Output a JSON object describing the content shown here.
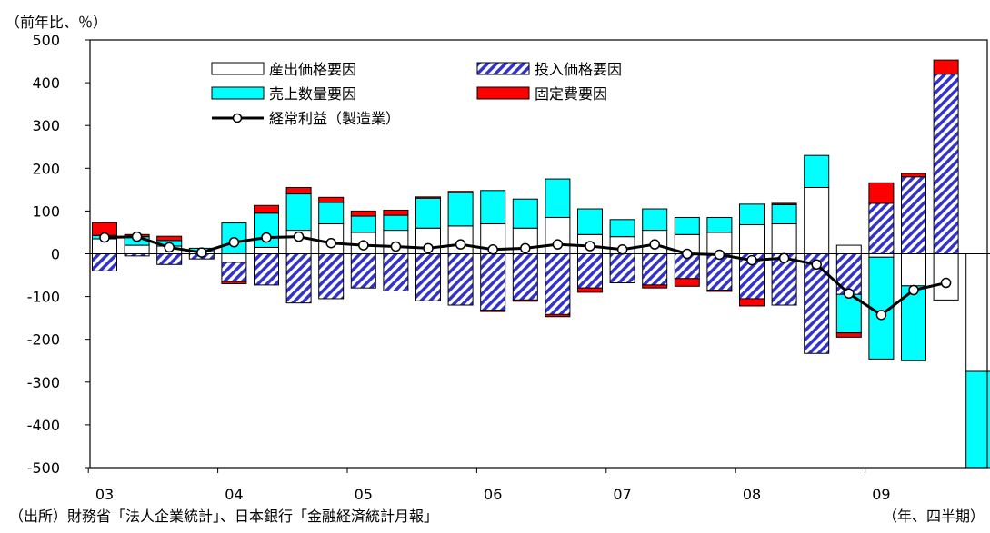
{
  "chart_data": {
    "type": "bar",
    "unit_label": "（前年比、％）",
    "x_unit_label": "（年、四半期）",
    "source": "（出所）財務省「法人企業統計」、日本銀行「金融経済統計月報」",
    "ylim": [
      -500,
      500
    ],
    "y_ticks": [
      500,
      400,
      300,
      200,
      100,
      0,
      -100,
      -200,
      -300,
      -400,
      -500
    ],
    "y_tick_labels": [
      "500",
      "400",
      "300",
      "200",
      "100",
      "0",
      "-100",
      "-200",
      "-300",
      "-400",
      "-500"
    ],
    "year_labels": [
      {
        "label": "03",
        "index": 0
      },
      {
        "label": "04",
        "index": 4
      },
      {
        "label": "05",
        "index": 8
      },
      {
        "label": "06",
        "index": 12
      },
      {
        "label": "07",
        "index": 16
      },
      {
        "label": "08",
        "index": 20
      },
      {
        "label": "09",
        "index": 24
      }
    ],
    "legend": {
      "output_price": "産出価格要因",
      "input_price": "投入価格要因",
      "sales_volume": "売上数量要因",
      "fixed_cost": "固定費要因",
      "profit_line": "経常利益（製造業）"
    },
    "colors": {
      "output_price": "#ffffff",
      "input_price": "#3333cc",
      "sales_volume": "#00ffff",
      "fixed_cost": "#ff0000",
      "profit_line": "#000000"
    },
    "series": [
      {
        "key": "output_price",
        "name": "産出価格要因",
        "values": [
          35,
          20,
          18,
          5,
          -20,
          15,
          55,
          70,
          50,
          55,
          60,
          65,
          70,
          60,
          85,
          45,
          40,
          55,
          45,
          50,
          68,
          70,
          155,
          20,
          -8,
          -75,
          -108,
          -275
        ]
      },
      {
        "key": "input_price",
        "name": "投入価格要因",
        "values": [
          -40,
          -5,
          -25,
          -12,
          -45,
          -73,
          -115,
          -105,
          -80,
          -87,
          -110,
          -120,
          -132,
          -108,
          -142,
          -80,
          -68,
          -73,
          -58,
          -85,
          -105,
          -120,
          -233,
          -95,
          118,
          180,
          420,
          0
        ]
      },
      {
        "key": "sales_volume",
        "name": "売上数量要因",
        "values": [
          8,
          20,
          13,
          8,
          72,
          80,
          85,
          50,
          38,
          35,
          70,
          78,
          78,
          68,
          90,
          60,
          40,
          50,
          40,
          35,
          48,
          45,
          75,
          -90,
          -238,
          -175,
          0,
          -225
        ]
      },
      {
        "key": "fixed_cost",
        "name": "固定費要因",
        "values": [
          30,
          5,
          10,
          0,
          -5,
          18,
          15,
          12,
          12,
          12,
          3,
          3,
          -3,
          -3,
          -5,
          -10,
          0,
          -7,
          -18,
          -3,
          -17,
          3,
          0,
          -10,
          48,
          8,
          33,
          0
        ]
      },
      {
        "key": "profit_line",
        "name": "経常利益（製造業）",
        "values": [
          38,
          40,
          15,
          3,
          27,
          38,
          40,
          25,
          20,
          17,
          13,
          22,
          10,
          13,
          22,
          18,
          10,
          22,
          0,
          -2,
          -15,
          -10,
          -25,
          -93,
          -143,
          -85,
          -68,
          null
        ]
      }
    ]
  }
}
